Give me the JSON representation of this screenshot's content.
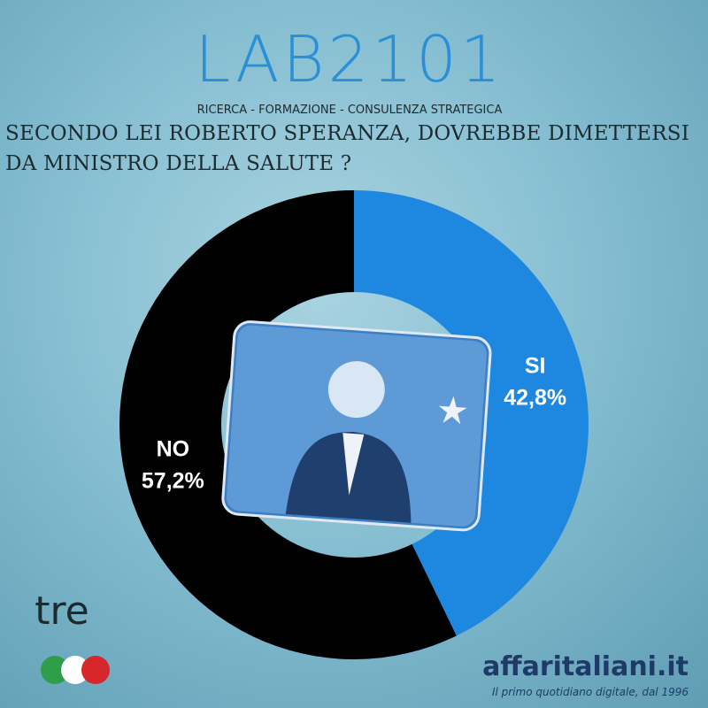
{
  "branding": {
    "logo": "LAB2101",
    "tagline": "RICERCA - FORMAZIONE - CONSULENZA STRATEGICA",
    "badge": "tre",
    "publisher": "affaritaliani.it",
    "publisher_tagline": "Il primo quotidiano digitale, dal 1996"
  },
  "chart_data": {
    "type": "pie",
    "donut": true,
    "title": "SECONDO LEI ROBERTO SPERANZA, DOVREBBE DIMETTERSI DA MINISTRO DELLA SALUTE ?",
    "categories": [
      "SI",
      "NO"
    ],
    "values": [
      42.8,
      57.2
    ],
    "value_labels": [
      "42,8%",
      "57,2%"
    ],
    "colors": [
      "#1e88e0",
      "#000000"
    ]
  }
}
